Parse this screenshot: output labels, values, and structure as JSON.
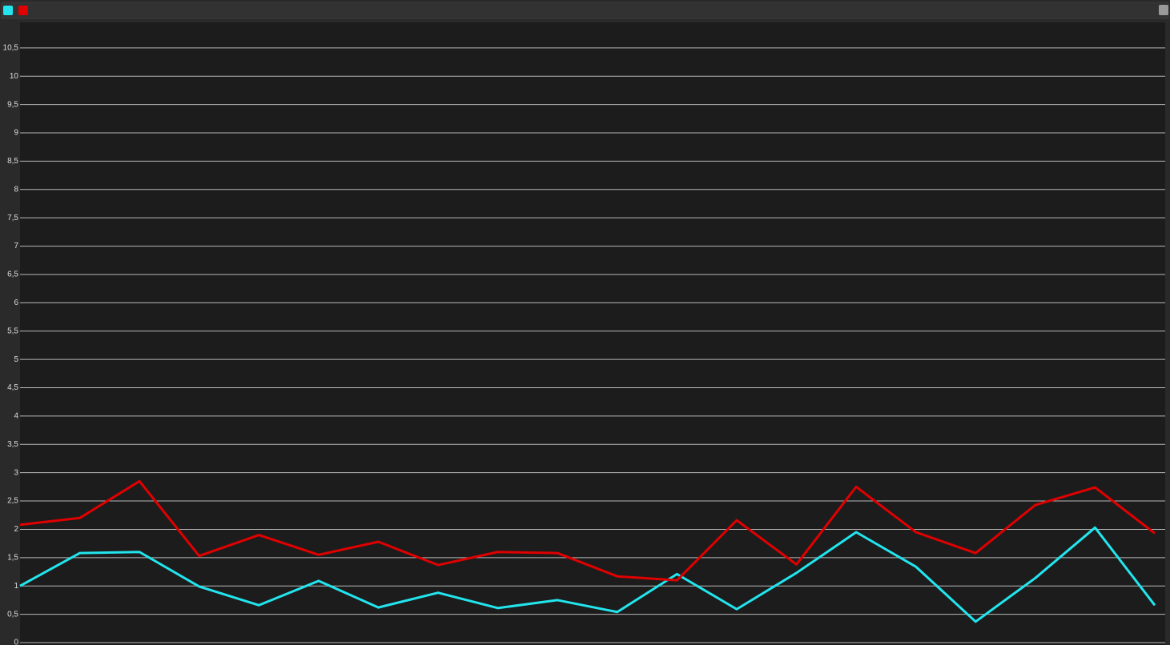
{
  "chart_data": {
    "type": "line",
    "categories": [
      null,
      null,
      null,
      null,
      null,
      null,
      null,
      null,
      null,
      null,
      null,
      null,
      null,
      null,
      null,
      null,
      null,
      null,
      null,
      null
    ],
    "series": [
      {
        "color": "#22e5ee",
        "values": [
          1.0,
          1.58,
          1.6,
          0.99,
          0.66,
          1.09,
          0.62,
          0.88,
          0.61,
          0.75,
          0.54,
          1.21,
          0.59,
          1.23,
          1.95,
          1.34,
          0.37,
          1.14,
          2.03,
          0.66
        ]
      },
      {
        "color": "#e00000",
        "values": [
          2.08,
          2.2,
          2.85,
          1.53,
          1.9,
          1.55,
          1.78,
          1.37,
          1.6,
          1.58,
          1.17,
          1.1,
          2.16,
          1.38,
          2.75,
          1.95,
          1.58,
          2.43,
          2.74,
          1.93
        ]
      }
    ],
    "ylim": [
      0,
      10.95
    ],
    "yticks": [
      0,
      {
        "value": 0.5,
        "label": "0,5"
      },
      1,
      {
        "value": 1.5,
        "label": "1,5"
      },
      2,
      {
        "value": 2.5,
        "label": "2,5"
      },
      3,
      {
        "value": 3.5,
        "label": "3,5"
      },
      4,
      {
        "value": 4.5,
        "label": "4,5"
      },
      5,
      {
        "value": 5.5,
        "label": "5,5"
      },
      6,
      {
        "value": 6.5,
        "label": "6,5"
      },
      7,
      {
        "value": 7.5,
        "label": "7,5"
      },
      8,
      {
        "value": 8.5,
        "label": "8,5"
      },
      9,
      {
        "value": 9.5,
        "label": "9,5"
      },
      10,
      {
        "value": 10.5,
        "label": "10,5"
      }
    ],
    "grid": true
  }
}
